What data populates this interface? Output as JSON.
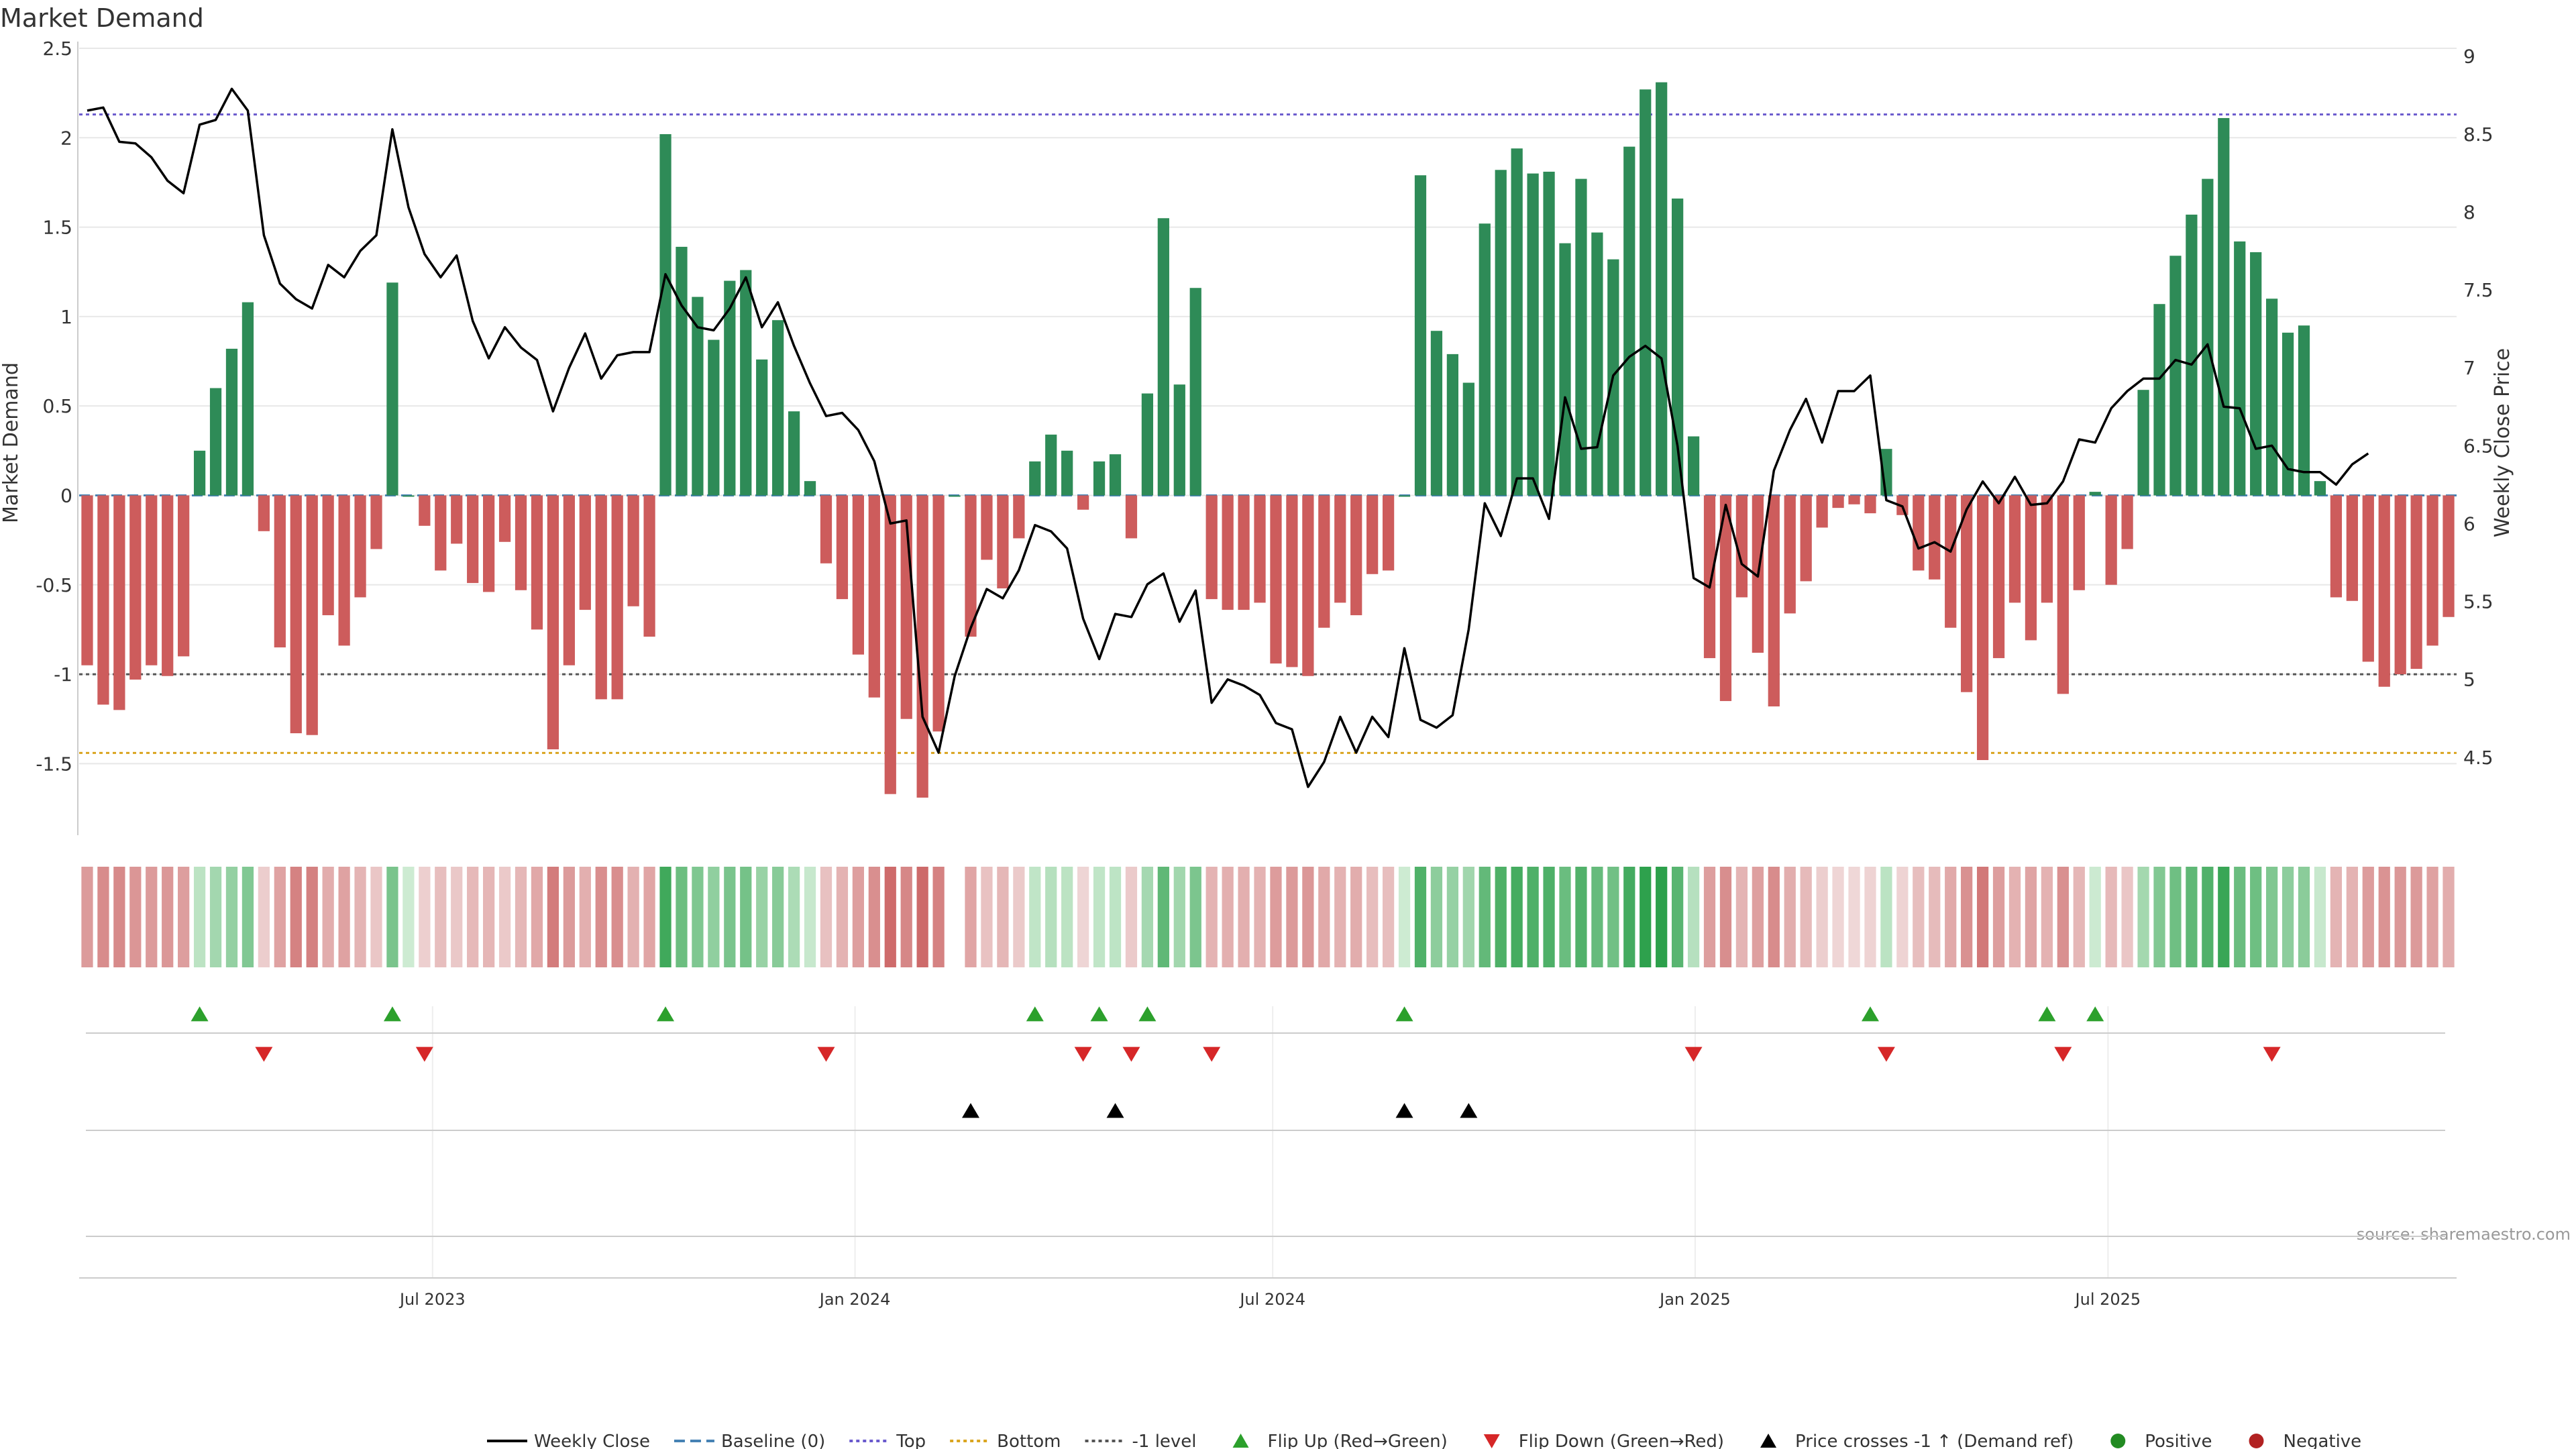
{
  "chart_data": {
    "type": "bar",
    "title": "Market Demand",
    "ylabel": "Market Demand",
    "ylabel_right": "Weekly Close Price",
    "source": "source: sharemaestro.com",
    "ylim": [
      -1.9,
      2.5
    ],
    "ylim_right": [
      4.0,
      9.05
    ],
    "y_ticks": [
      2.5,
      2,
      1.5,
      1,
      0.5,
      0,
      -0.5,
      -1,
      -1.5
    ],
    "y_tick_labels": [
      "2.5",
      "2",
      "1.5",
      "1",
      "0.5",
      "0",
      "-0.5",
      "-1",
      "-1.5"
    ],
    "y2_ticks": [
      9,
      8.5,
      8,
      7.5,
      7,
      6.5,
      6,
      5.5,
      5,
      4.5
    ],
    "y2_tick_labels": [
      "9",
      "8.5",
      "8",
      "7.5",
      "7",
      "6.5",
      "6",
      "5.5",
      "5",
      "4.5"
    ],
    "x_ticks": [
      {
        "week": 22,
        "label": "Jul 2023"
      },
      {
        "week": 48.3,
        "label": "Jan 2024"
      },
      {
        "week": 74.3,
        "label": "Jul 2024"
      },
      {
        "week": 100.6,
        "label": "Jan 2025"
      },
      {
        "week": 126.3,
        "label": "Jul 2025"
      }
    ],
    "reference_lines": {
      "baseline": 0,
      "top": 2.13,
      "bottom": -1.44,
      "minus_one": -1.0
    },
    "demand": [
      -0.95,
      -1.17,
      -1.2,
      -1.03,
      -0.95,
      -1.01,
      -0.9,
      0.25,
      0.6,
      0.82,
      1.08,
      -0.2,
      -0.85,
      -1.33,
      -1.34,
      -0.67,
      -0.84,
      -0.57,
      -0.3,
      1.19,
      0.0,
      -0.17,
      -0.42,
      -0.27,
      -0.49,
      -0.54,
      -0.26,
      -0.53,
      -0.75,
      -1.42,
      -0.95,
      -0.64,
      -1.14,
      -1.14,
      -0.62,
      -0.79,
      2.02,
      1.39,
      1.11,
      0.87,
      1.2,
      1.26,
      0.76,
      0.98,
      0.47,
      0.08,
      -0.38,
      -0.58,
      -0.89,
      -1.13,
      -1.67,
      -1.25,
      -1.69,
      -1.32,
      0.0,
      -0.79,
      -0.36,
      -0.52,
      -0.24,
      0.19,
      0.34,
      0.25,
      -0.08,
      0.19,
      0.23,
      -0.24,
      0.57,
      1.55,
      0.62,
      1.16,
      -0.58,
      -0.64,
      -0.64,
      -0.6,
      -0.94,
      -0.96,
      -1.01,
      -0.74,
      -0.6,
      -0.67,
      -0.44,
      -0.42,
      0.0,
      1.79,
      0.92,
      0.79,
      0.63,
      1.52,
      1.82,
      1.94,
      1.8,
      1.81,
      1.41,
      1.77,
      1.47,
      1.32,
      1.95,
      2.27,
      2.31,
      1.66,
      0.33,
      -0.91,
      -1.15,
      -0.57,
      -0.88,
      -1.18,
      -0.66,
      -0.48,
      -0.18,
      -0.07,
      -0.05,
      -0.1,
      0.26,
      -0.11,
      -0.42,
      -0.47,
      -0.74,
      -1.1,
      -1.48,
      -0.91,
      -0.6,
      -0.81,
      -0.6,
      -1.11,
      -0.53,
      0.02,
      -0.5,
      -0.3,
      0.59,
      1.07,
      1.34,
      1.57,
      1.77,
      2.11,
      1.42,
      1.36,
      1.1,
      0.91,
      0.95,
      0.08,
      -0.57,
      -0.59,
      -0.93,
      -1.07,
      -1.0,
      -0.97,
      -0.84,
      -0.68
    ],
    "weekly_close": [
      8.65,
      8.67,
      8.45,
      8.44,
      8.35,
      8.2,
      8.12,
      8.56,
      8.59,
      8.79,
      8.65,
      7.85,
      7.54,
      7.44,
      7.38,
      7.66,
      7.58,
      7.75,
      7.85,
      8.53,
      8.03,
      7.73,
      7.58,
      7.72,
      7.3,
      7.06,
      7.26,
      7.13,
      7.05,
      6.72,
      7.0,
      7.22,
      6.93,
      7.08,
      7.1,
      7.1,
      7.6,
      7.4,
      7.26,
      7.24,
      7.38,
      7.58,
      7.26,
      7.42,
      7.14,
      6.9,
      6.69,
      6.71,
      6.6,
      6.4,
      6.0,
      6.02,
      4.76,
      4.53,
      5.02,
      5.33,
      5.58,
      5.52,
      5.7,
      5.99,
      5.95,
      5.84,
      5.39,
      5.13,
      5.42,
      5.4,
      5.61,
      5.68,
      5.37,
      5.57,
      4.85,
      5.0,
      4.96,
      4.9,
      4.72,
      4.68,
      4.31,
      4.47,
      4.76,
      4.53,
      4.76,
      4.63,
      5.2,
      4.74,
      4.69,
      4.77,
      5.32,
      6.13,
      5.92,
      6.29,
      6.29,
      6.03,
      6.81,
      6.48,
      6.49,
      6.95,
      7.07,
      7.14,
      7.06,
      6.5,
      5.65,
      5.59,
      6.12,
      5.74,
      5.66,
      6.34,
      6.6,
      6.8,
      6.52,
      6.85,
      6.85,
      6.95,
      6.15,
      6.11,
      5.84,
      5.88,
      5.82,
      6.09,
      6.27,
      6.13,
      6.3,
      6.12,
      6.13,
      6.27,
      6.54,
      6.52,
      6.74,
      6.85,
      6.93,
      6.93,
      7.05,
      7.02,
      7.15,
      6.75,
      6.74,
      6.48,
      6.5,
      6.35,
      6.33,
      6.33,
      6.25,
      6.38,
      6.45
    ],
    "flip_up_weeks": [
      7,
      19,
      36,
      59,
      63,
      66,
      82,
      111,
      122,
      125
    ],
    "flip_down_weeks": [
      11,
      21,
      46,
      62,
      65,
      70,
      100,
      112,
      123,
      136
    ],
    "price_cross_weeks": [
      55,
      64,
      82,
      86
    ],
    "strip_gap_week": 54,
    "legend": [
      {
        "label": "Weekly Close",
        "kind": "line"
      },
      {
        "label": "Baseline (0)",
        "kind": "dash"
      },
      {
        "label": "Top",
        "kind": "dot-top"
      },
      {
        "label": "Bottom",
        "kind": "dot-bottom"
      },
      {
        "label": "-1 level",
        "kind": "dot-minus"
      },
      {
        "label": "Flip Up (Red→Green)",
        "kind": "tri-up"
      },
      {
        "label": "Flip Down (Green→Red)",
        "kind": "tri-down"
      },
      {
        "label": "Price crosses -1 ↑ (Demand ref)",
        "kind": "tri-black"
      },
      {
        "label": "Positive",
        "kind": "dot-green"
      },
      {
        "label": "Negative",
        "kind": "dot-red"
      }
    ]
  },
  "colors": {
    "pos_bar": "#2e8b57",
    "neg_bar": "#cd5c5c",
    "price_line": "#000000",
    "baseline": "#4682b4",
    "top_line": "#6a5acd",
    "bottom_line": "#daa520",
    "minus_line": "#555555",
    "flip_up": "#2ca02c",
    "flip_down": "#d62728",
    "positive_dot": "#228b22",
    "negative_dot": "#b22222",
    "grid": "#e8e8e8",
    "axis": "#cccccc",
    "text": "#333333"
  }
}
